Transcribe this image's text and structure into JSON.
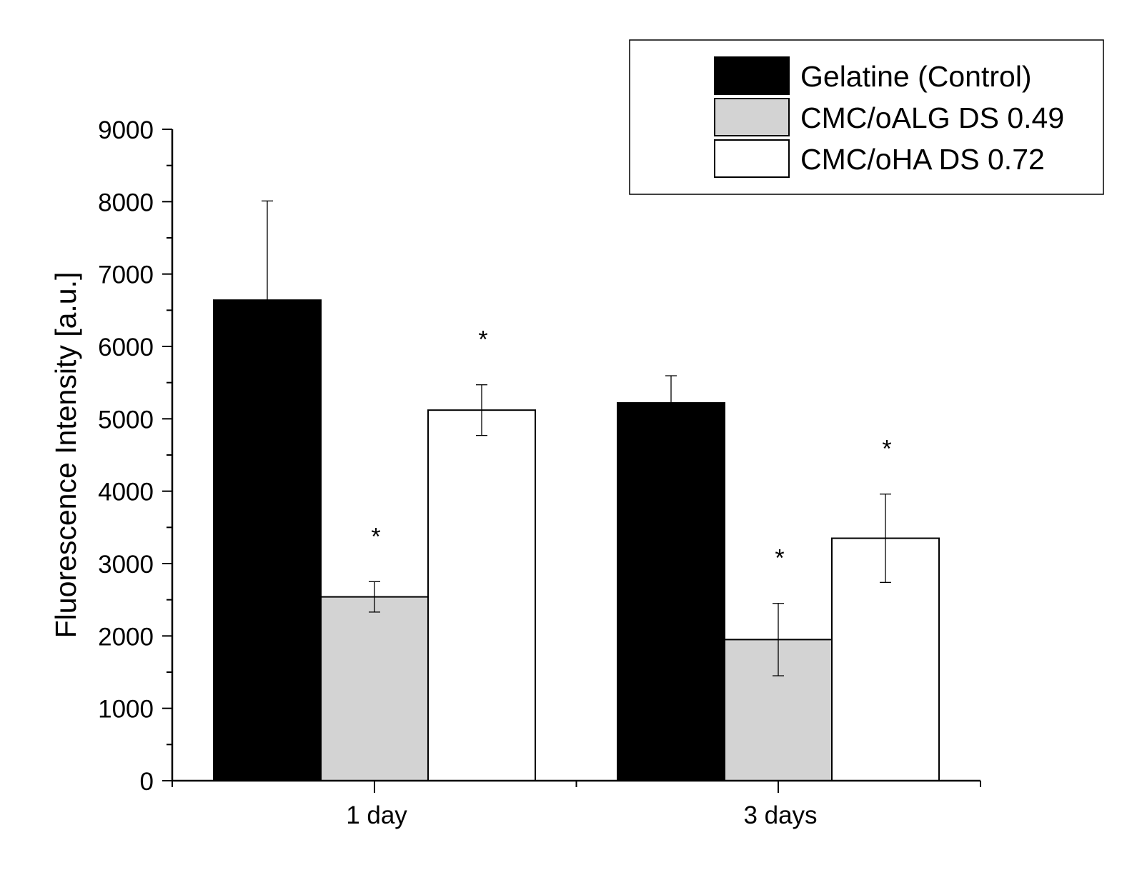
{
  "chart_data": {
    "type": "bar",
    "title": "",
    "xlabel": "",
    "ylabel": "Fluorescence Intensity [a.u.]",
    "ylim": [
      0,
      9000
    ],
    "yticks": [
      "0",
      "1000",
      "2000",
      "3000",
      "4000",
      "5000",
      "6000",
      "7000",
      "8000",
      "9000"
    ],
    "yminor_step": 500,
    "categories": [
      "1 day",
      "3 days"
    ],
    "series": [
      {
        "name": "Gelatine (Control)",
        "color": "#000000",
        "values": [
          6640,
          5220
        ],
        "errors": [
          1370,
          375
        ],
        "significance": [
          "",
          ""
        ]
      },
      {
        "name": "CMC/oALG DS 0.49",
        "color": "#d3d3d3",
        "values": [
          2540,
          1950
        ],
        "errors": [
          210,
          500
        ],
        "significance": [
          "*",
          "*"
        ]
      },
      {
        "name": "CMC/oHA DS 0.72",
        "color": "#ffffff",
        "values": [
          5120,
          3350
        ],
        "errors": [
          350,
          610
        ],
        "significance": [
          "*",
          "*"
        ]
      }
    ],
    "legend_position": "top-right",
    "grid": false
  }
}
